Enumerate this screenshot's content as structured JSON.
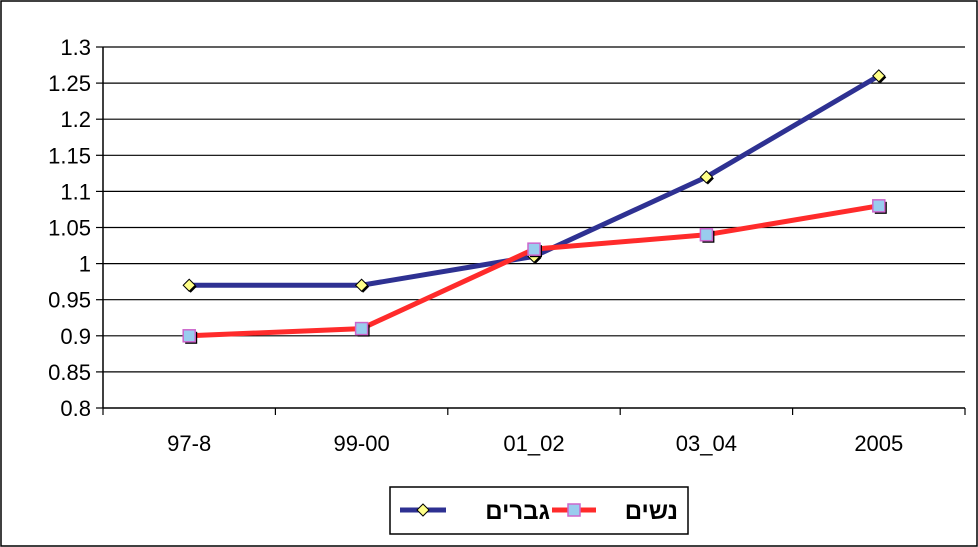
{
  "chart_data": {
    "type": "line",
    "categories": [
      "97-8",
      "99-00",
      "01_02",
      "03_04",
      "2005"
    ],
    "ylim": [
      0.8,
      1.3
    ],
    "yticks": [
      "1.3",
      "1.25",
      "1.2",
      "1.15",
      "1.1",
      "1.05",
      "1",
      "0.95",
      "0.9",
      "0.85",
      "0.8"
    ],
    "grid": true,
    "legend_position": "bottom",
    "series": [
      {
        "name": "גברים",
        "color": "#2e3192",
        "marker": "diamond",
        "values": [
          0.97,
          0.97,
          1.01,
          1.12,
          1.26
        ]
      },
      {
        "name": "נשים",
        "color": "#ff2b2b",
        "marker": "square",
        "values": [
          0.9,
          0.91,
          1.02,
          1.04,
          1.08
        ]
      }
    ]
  }
}
